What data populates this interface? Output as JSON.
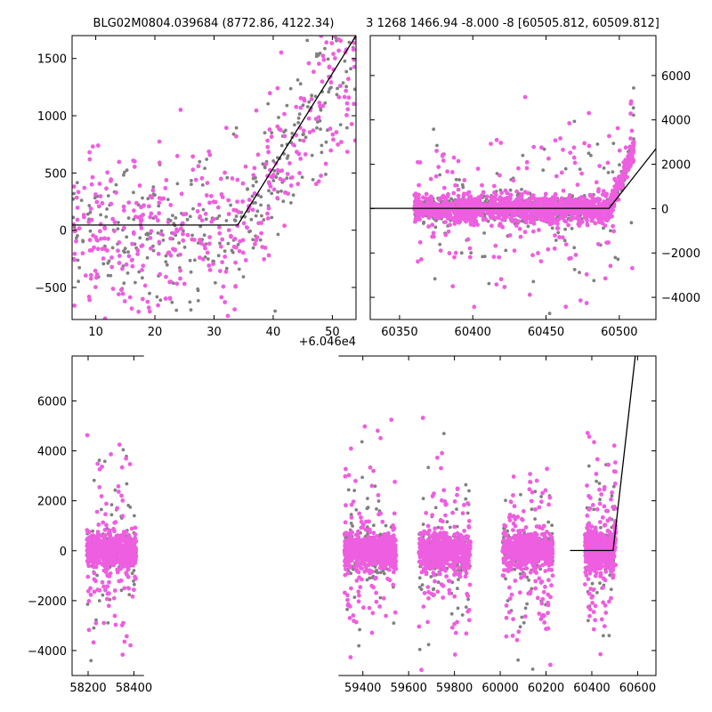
{
  "titles": {
    "left": "BLG02M0804.039684 (8772.86, 4122.34)",
    "right": "3 1268 1466.94 -8.000 -8 [60505.812, 60509.812]"
  },
  "offset_label": "+6.046e4",
  "colors": {
    "series_a": "#ee5ee0",
    "series_b": "#808080",
    "model": "#000000"
  },
  "chart_data": [
    {
      "type": "scatter",
      "panel": "top-left zoom",
      "x_offset": 60460,
      "xlim": [
        6,
        54
      ],
      "ylim": [
        -780,
        1700
      ],
      "xticks": [
        10,
        20,
        30,
        40,
        50
      ],
      "yticks": [
        -500,
        0,
        500,
        1000,
        1500
      ],
      "tick_labels_x": [
        "10",
        "20",
        "30",
        "40",
        "50"
      ],
      "tick_labels_y": [
        "−500",
        "0",
        "500",
        "1000",
        "1500"
      ],
      "series": [
        {
          "color": "#ee5ee0",
          "distribution": "scattered, rising after ~34",
          "count": 420
        },
        {
          "color": "#808080",
          "distribution": "scattered",
          "count": 320
        }
      ],
      "model_line": {
        "x": [
          6,
          34,
          54
        ],
        "y": [
          45,
          45,
          1700
        ]
      }
    },
    {
      "type": "scatter",
      "panel": "top-right",
      "xlim": [
        60330,
        60525
      ],
      "ylim": [
        -5000,
        7800
      ],
      "xticks": [
        60350,
        60400,
        60450,
        60500
      ],
      "yticks": [
        -4000,
        -2000,
        0,
        2000,
        4000,
        6000
      ],
      "tick_labels_x": [
        "60350",
        "60400",
        "60450",
        "60500"
      ],
      "tick_labels_y": [
        "−4000",
        "−2000",
        "0",
        "2000",
        "4000",
        "6000"
      ],
      "series": [
        {
          "color": "#ee5ee0",
          "count": 1400
        },
        {
          "color": "#808080",
          "count": 700
        }
      ],
      "model_line": {
        "x": [
          60330,
          60493,
          60525
        ],
        "y": [
          10,
          10,
          2700
        ]
      }
    },
    {
      "type": "scatter",
      "panel": "bottom full light curve",
      "xlim": [
        58130,
        60680
      ],
      "ylim": [
        -5000,
        7800
      ],
      "xticks": [
        58200,
        58400,
        59400,
        59600,
        59800,
        60000,
        60200,
        60400,
        60600
      ],
      "yticks": [
        -4000,
        -2000,
        0,
        2000,
        4000,
        6000
      ],
      "tick_labels_x": [
        "58200",
        "58400",
        "59400",
        "59600",
        "59800",
        "60000",
        "60200",
        "60400",
        "60600"
      ],
      "tick_labels_y": [
        "−4000",
        "−2000",
        "0",
        "2000",
        "4000",
        "6000"
      ],
      "seasons": [
        [
          58195,
          58410
        ],
        [
          59320,
          59545
        ],
        [
          59645,
          59870
        ],
        [
          60010,
          60230
        ],
        [
          60370,
          60505
        ]
      ],
      "series": [
        {
          "color": "#ee5ee0",
          "count": 3000
        },
        {
          "color": "#808080",
          "count": 1200
        }
      ],
      "model_line": {
        "x": [
          60305,
          60493,
          60590
        ],
        "y": [
          10,
          10,
          7800
        ]
      }
    }
  ]
}
